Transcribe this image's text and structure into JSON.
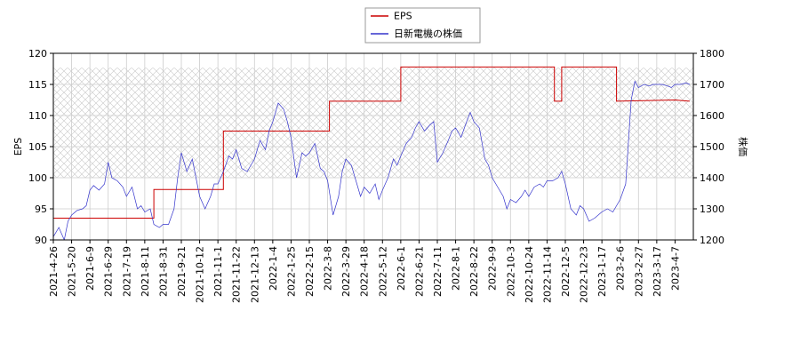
{
  "chart_data": {
    "type": "line",
    "legend": {
      "placement": "top-center",
      "entries": [
        {
          "label": "EPS",
          "color": "#cc0000"
        },
        {
          "label": "日新電機の株価",
          "color": "#3333cc"
        }
      ]
    },
    "x_ticks": [
      "2021-4-26",
      "2021-5-20",
      "2021-6-9",
      "2021-6-29",
      "2021-7-19",
      "2021-8-11",
      "2021-8-31",
      "2021-9-21",
      "2021-10-12",
      "2021-11-1",
      "2021-11-22",
      "2021-12-13",
      "2022-1-4",
      "2022-1-25",
      "2022-2-15",
      "2022-3-8",
      "2022-3-29",
      "2022-4-18",
      "2022-5-12",
      "2022-6-1",
      "2022-6-21",
      "2022-7-11",
      "2022-8-1",
      "2022-8-22",
      "2022-9-9",
      "2022-10-3",
      "2022-10-24",
      "2022-11-14",
      "2022-12-5",
      "2022-12-23",
      "2023-1-17",
      "2023-2-6",
      "2023-2-27",
      "2023-3-17",
      "2023-4-7"
    ],
    "left_axis": {
      "label": "EPS",
      "min": 90,
      "max": 120,
      "ticks": [
        "90",
        "95",
        "100",
        "105",
        "110",
        "115",
        "120"
      ]
    },
    "right_axis": {
      "label": "株価",
      "min": 1200,
      "max": 1800,
      "ticks": [
        "1200",
        "1300",
        "1400",
        "1500",
        "1600",
        "1700",
        "1800"
      ]
    },
    "grid": true,
    "hatched_band": {
      "axis": "left",
      "from": 100,
      "to": 117.7
    },
    "series": [
      {
        "name": "EPS",
        "axis": "left",
        "color": "#cc0000",
        "step": true,
        "points": [
          [
            0,
            93.5
          ],
          [
            5.5,
            93.5
          ],
          [
            5.5,
            98.1
          ],
          [
            9.3,
            98.1
          ],
          [
            9.3,
            107.5
          ],
          [
            15.1,
            107.5
          ],
          [
            15.1,
            112.3
          ],
          [
            19.0,
            112.3
          ],
          [
            19.0,
            117.8
          ],
          [
            27.4,
            117.8
          ],
          [
            27.4,
            112.3
          ],
          [
            27.8,
            112.3
          ],
          [
            27.8,
            117.8
          ],
          [
            30.8,
            117.8
          ],
          [
            30.8,
            112.3
          ],
          [
            34.0,
            112.5
          ],
          [
            34.8,
            112.3
          ]
        ]
      },
      {
        "name": "日新電機の株価",
        "axis": "right",
        "color": "#3333cc",
        "points": [
          [
            0,
            1210
          ],
          [
            0.3,
            1240
          ],
          [
            0.6,
            1200
          ],
          [
            0.8,
            1260
          ],
          [
            1.0,
            1280
          ],
          [
            1.3,
            1295
          ],
          [
            1.6,
            1300
          ],
          [
            1.8,
            1310
          ],
          [
            2.0,
            1360
          ],
          [
            2.2,
            1375
          ],
          [
            2.5,
            1360
          ],
          [
            2.8,
            1380
          ],
          [
            3.0,
            1450
          ],
          [
            3.2,
            1400
          ],
          [
            3.5,
            1390
          ],
          [
            3.8,
            1370
          ],
          [
            4.0,
            1340
          ],
          [
            4.3,
            1370
          ],
          [
            4.6,
            1300
          ],
          [
            4.8,
            1310
          ],
          [
            5.0,
            1290
          ],
          [
            5.3,
            1300
          ],
          [
            5.5,
            1250
          ],
          [
            5.8,
            1240
          ],
          [
            6.0,
            1250
          ],
          [
            6.3,
            1250
          ],
          [
            6.6,
            1300
          ],
          [
            6.8,
            1400
          ],
          [
            7.0,
            1480
          ],
          [
            7.3,
            1420
          ],
          [
            7.6,
            1460
          ],
          [
            7.8,
            1400
          ],
          [
            8.0,
            1340
          ],
          [
            8.3,
            1300
          ],
          [
            8.6,
            1340
          ],
          [
            8.8,
            1380
          ],
          [
            9.0,
            1380
          ],
          [
            9.3,
            1420
          ],
          [
            9.6,
            1470
          ],
          [
            9.8,
            1460
          ],
          [
            10.0,
            1490
          ],
          [
            10.3,
            1430
          ],
          [
            10.6,
            1420
          ],
          [
            10.8,
            1440
          ],
          [
            11.0,
            1460
          ],
          [
            11.3,
            1520
          ],
          [
            11.6,
            1490
          ],
          [
            11.8,
            1550
          ],
          [
            12.0,
            1580
          ],
          [
            12.3,
            1640
          ],
          [
            12.6,
            1620
          ],
          [
            12.8,
            1580
          ],
          [
            13.0,
            1530
          ],
          [
            13.3,
            1400
          ],
          [
            13.6,
            1480
          ],
          [
            13.8,
            1470
          ],
          [
            14.0,
            1480
          ],
          [
            14.3,
            1510
          ],
          [
            14.6,
            1430
          ],
          [
            14.8,
            1420
          ],
          [
            15.0,
            1390
          ],
          [
            15.3,
            1280
          ],
          [
            15.6,
            1340
          ],
          [
            15.8,
            1420
          ],
          [
            16.0,
            1460
          ],
          [
            16.3,
            1440
          ],
          [
            16.6,
            1380
          ],
          [
            16.8,
            1340
          ],
          [
            17.0,
            1370
          ],
          [
            17.3,
            1350
          ],
          [
            17.6,
            1380
          ],
          [
            17.8,
            1330
          ],
          [
            18.0,
            1360
          ],
          [
            18.3,
            1400
          ],
          [
            18.6,
            1460
          ],
          [
            18.8,
            1440
          ],
          [
            19.0,
            1470
          ],
          [
            19.3,
            1510
          ],
          [
            19.6,
            1530
          ],
          [
            19.8,
            1560
          ],
          [
            20.0,
            1580
          ],
          [
            20.3,
            1550
          ],
          [
            20.6,
            1570
          ],
          [
            20.8,
            1580
          ],
          [
            21.0,
            1450
          ],
          [
            21.3,
            1480
          ],
          [
            21.6,
            1520
          ],
          [
            21.8,
            1550
          ],
          [
            22.0,
            1560
          ],
          [
            22.3,
            1530
          ],
          [
            22.6,
            1580
          ],
          [
            22.8,
            1610
          ],
          [
            23.0,
            1580
          ],
          [
            23.3,
            1560
          ],
          [
            23.6,
            1460
          ],
          [
            23.8,
            1440
          ],
          [
            24.0,
            1400
          ],
          [
            24.3,
            1370
          ],
          [
            24.6,
            1340
          ],
          [
            24.8,
            1300
          ],
          [
            25.0,
            1330
          ],
          [
            25.3,
            1320
          ],
          [
            25.6,
            1340
          ],
          [
            25.8,
            1360
          ],
          [
            26.0,
            1340
          ],
          [
            26.3,
            1370
          ],
          [
            26.6,
            1380
          ],
          [
            26.8,
            1370
          ],
          [
            27.0,
            1390
          ],
          [
            27.3,
            1390
          ],
          [
            27.6,
            1400
          ],
          [
            27.8,
            1420
          ],
          [
            28.0,
            1380
          ],
          [
            28.3,
            1300
          ],
          [
            28.6,
            1280
          ],
          [
            28.8,
            1310
          ],
          [
            29.0,
            1300
          ],
          [
            29.3,
            1260
          ],
          [
            29.6,
            1270
          ],
          [
            29.8,
            1280
          ],
          [
            30.0,
            1290
          ],
          [
            30.3,
            1300
          ],
          [
            30.6,
            1290
          ],
          [
            30.8,
            1310
          ],
          [
            31.0,
            1330
          ],
          [
            31.3,
            1380
          ],
          [
            31.6,
            1650
          ],
          [
            31.8,
            1710
          ],
          [
            32.0,
            1690
          ],
          [
            32.3,
            1700
          ],
          [
            32.6,
            1695
          ],
          [
            32.8,
            1700
          ],
          [
            33.0,
            1700
          ],
          [
            33.3,
            1700
          ],
          [
            33.6,
            1695
          ],
          [
            33.8,
            1690
          ],
          [
            34.0,
            1700
          ],
          [
            34.3,
            1700
          ],
          [
            34.6,
            1705
          ],
          [
            34.8,
            1700
          ]
        ]
      }
    ]
  }
}
